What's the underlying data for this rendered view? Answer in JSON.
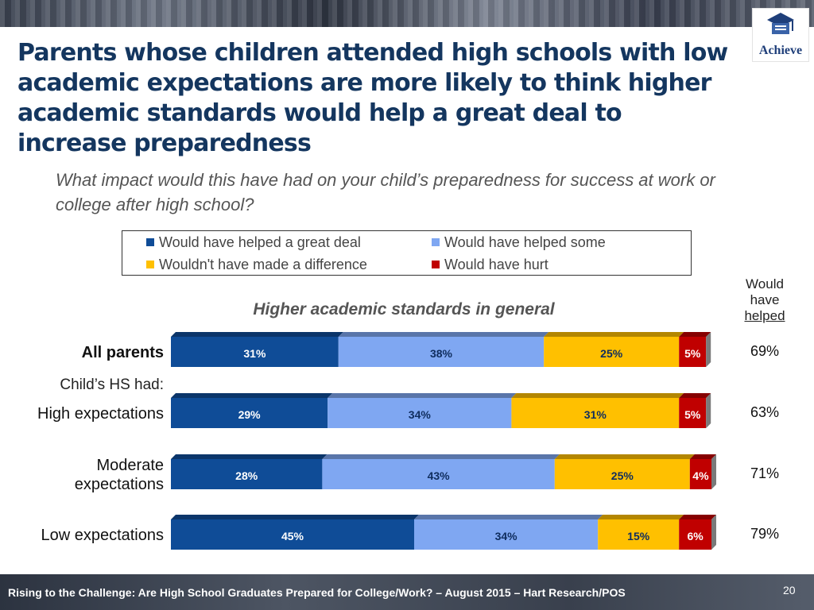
{
  "title": "Parents whose children attended high schools with low academic expectations are more likely to think higher academic standards would help a great deal to increase preparedness",
  "subtitle": "What impact would this have had on your child’s preparedness for success at work or college after high school?",
  "logo": {
    "text": "Achieve",
    "icon": "graduation-cap-icon"
  },
  "colors": {
    "great_deal": "#0f4c97",
    "some": "#7fa7f2",
    "no_difference": "#ffc000",
    "hurt": "#c00000"
  },
  "right_header": {
    "line1": "Would",
    "line2": "have",
    "line3": "helped"
  },
  "group_label": "Child’s HS had:",
  "footer": {
    "text": "Rising to the Challenge:  Are High School Graduates Prepared for College/Work? – August 2015 – Hart Research/POS",
    "page": "20"
  },
  "chart_data": {
    "type": "bar",
    "orientation": "horizontal",
    "stacked": true,
    "subtitle": "Higher academic standards in general",
    "legend_placement": "top",
    "categories": [
      "All parents",
      "High expectations",
      "Moderate expectations",
      "Low expectations"
    ],
    "series": [
      {
        "name": "Would have helped a great deal",
        "values": [
          31,
          29,
          28,
          45
        ]
      },
      {
        "name": "Would have helped some",
        "values": [
          38,
          34,
          43,
          34
        ]
      },
      {
        "name": "Wouldn't have made a difference",
        "values": [
          25,
          31,
          25,
          15
        ]
      },
      {
        "name": "Would have hurt",
        "values": [
          5,
          5,
          4,
          6
        ]
      }
    ],
    "data_labels": [
      [
        "31%",
        "38%",
        "25%",
        "5%"
      ],
      [
        "29%",
        "34%",
        "31%",
        "5%"
      ],
      [
        "28%",
        "43%",
        "25%",
        "4%"
      ],
      [
        "45%",
        "34%",
        "15%",
        "6%"
      ]
    ],
    "would_have_helped": [
      "69%",
      "63%",
      "71%",
      "79%"
    ],
    "xlim": [
      0,
      100
    ]
  }
}
